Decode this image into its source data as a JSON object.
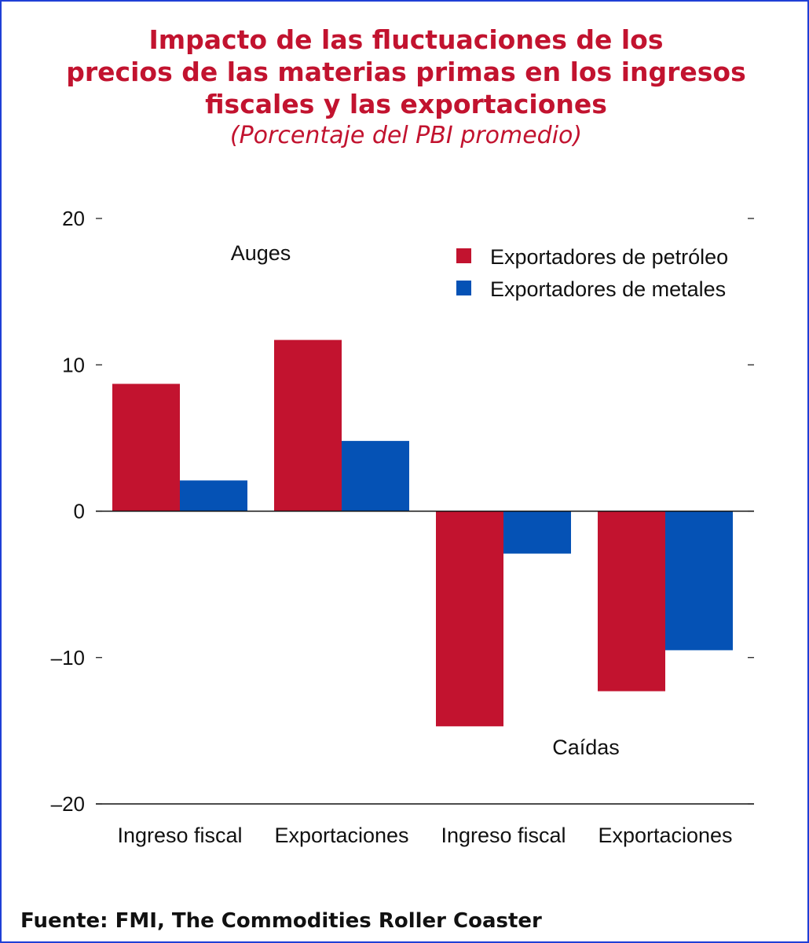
{
  "title_lines": [
    "Impacto de las fluctuaciones de los",
    "precios de las materias primas en los ingresos",
    "fiscales y las exportaciones"
  ],
  "subtitle": "(Porcentaje del PBI promedio)",
  "source": "Fuente: FMI, The Commodities Roller Coaster",
  "colors": {
    "title": "#c2132f",
    "oil": "#c2132f",
    "metal": "#0552b5",
    "border": "#1f3fd6"
  },
  "chart_data": {
    "type": "bar",
    "categories": [
      "Ingreso fiscal",
      "Exportaciones",
      "Ingreso fiscal",
      "Exportaciones"
    ],
    "series": [
      {
        "name": "Exportadores de petróleo",
        "color": "#c2132f",
        "values": [
          8.7,
          11.7,
          -14.7,
          -12.3
        ]
      },
      {
        "name": "Exportadores de metales",
        "color": "#0552b5",
        "values": [
          2.1,
          4.8,
          -2.9,
          -9.5
        ]
      }
    ],
    "ylim": [
      -20,
      20
    ],
    "yticks": [
      20,
      10,
      0,
      -10,
      -20
    ],
    "ytick_labels": [
      "20",
      "10",
      "0",
      "–10",
      "–20"
    ],
    "annotations": [
      "Auges",
      "Caídas"
    ],
    "legend_position": "top-right",
    "grid": false
  }
}
